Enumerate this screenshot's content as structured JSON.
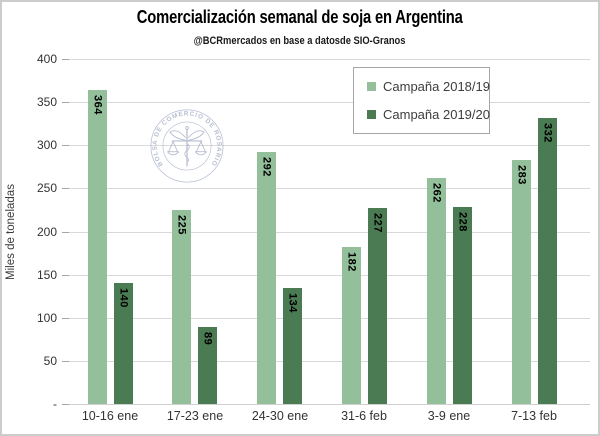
{
  "chart_data": {
    "type": "bar",
    "title": "Comercialización semanal de soja en Argentina",
    "subtitle": "@BCRmercados en base a datosde SIO-Granos",
    "ylabel": "Miles de toneladas",
    "categories": [
      "10-16 ene",
      "17-23 ene",
      "24-30 ene",
      "31-6 feb",
      "3-9 ene",
      "7-13 feb"
    ],
    "series": [
      {
        "name": "Campaña 2018/19",
        "color": "#93c09a",
        "values": [
          364,
          225,
          292,
          182,
          262,
          283
        ]
      },
      {
        "name": "Campaña 2019/20",
        "color": "#4a7b52",
        "values": [
          140,
          89,
          134,
          227,
          228,
          332
        ]
      }
    ],
    "ylim": [
      0,
      400
    ],
    "ytick_step": 50,
    "ytick_labels": [
      "-",
      "50",
      "100",
      "150",
      "200",
      "250",
      "300",
      "350",
      "400"
    ],
    "grid": true,
    "legend_position": "top-right-inside",
    "value_labels": "inside-end-rotated"
  },
  "colors": {
    "gridline": "#d9d9d9",
    "axis_tick": "#a6a6a6",
    "frame_border": "#cccccc",
    "watermark": "#a5adc6"
  },
  "watermark": {
    "circle_text": "BOLSA DE COMERCIO DE ROSARIO",
    "emblem": "caduceus-with-scales"
  }
}
